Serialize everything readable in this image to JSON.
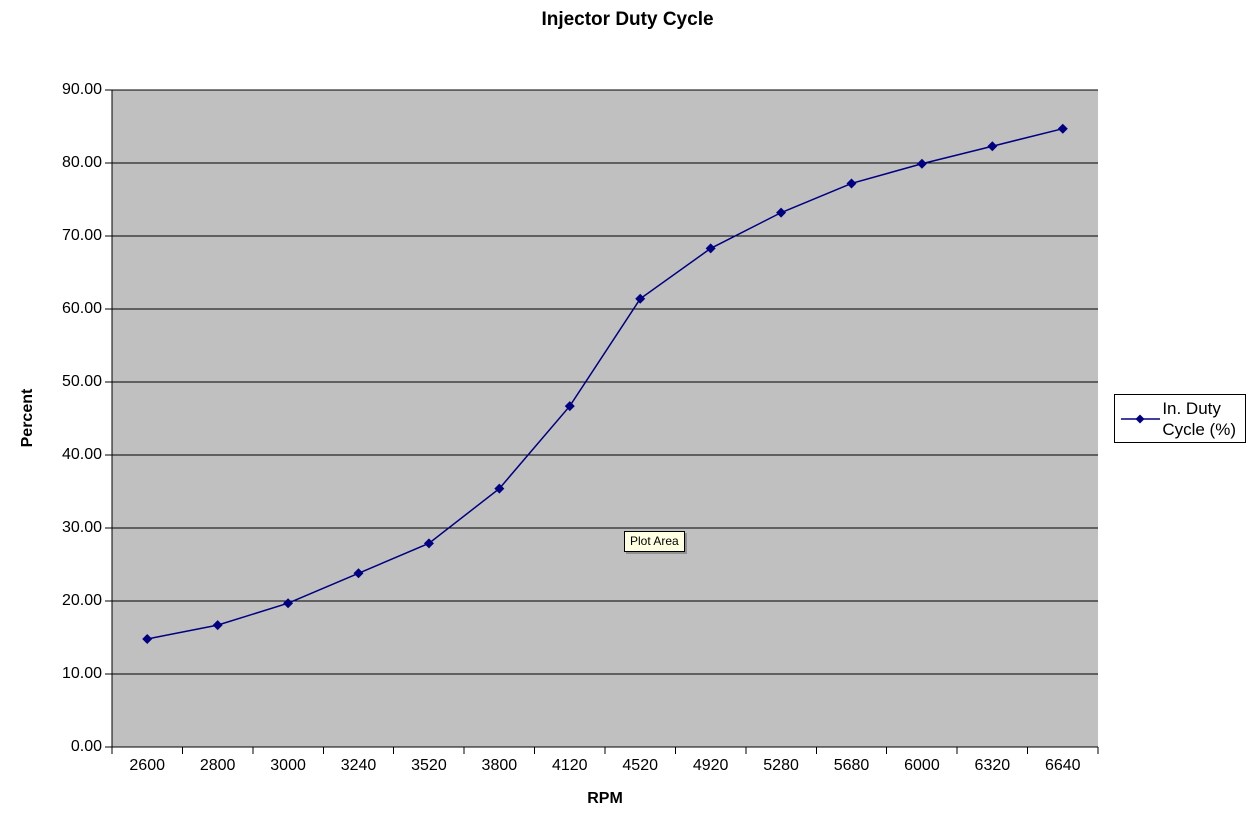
{
  "chart_data": {
    "type": "line",
    "title": "Injector Duty Cycle",
    "xlabel": "RPM",
    "ylabel": "Percent",
    "categories": [
      "2600",
      "2800",
      "3000",
      "3240",
      "3520",
      "3800",
      "4120",
      "4520",
      "4920",
      "5280",
      "5680",
      "6000",
      "6320",
      "6640"
    ],
    "series": [
      {
        "name": "In. Duty Cycle (%)",
        "values": [
          14.8,
          16.7,
          19.7,
          23.8,
          27.9,
          35.4,
          46.7,
          61.4,
          68.3,
          73.2,
          77.2,
          79.9,
          82.3,
          84.7
        ]
      }
    ],
    "ylim": [
      0,
      90
    ],
    "y_tick_step": 10,
    "y_tick_labels": [
      "0.00",
      "10.00",
      "20.00",
      "30.00",
      "40.00",
      "50.00",
      "60.00",
      "70.00",
      "80.00",
      "90.00"
    ],
    "grid": true,
    "legend_position": "right",
    "colors": {
      "line": "#000080",
      "marker": "#000080",
      "plot_background": "#c0c0c0",
      "gridline": "#000000",
      "axis": "#000000",
      "page_background": "#ffffff"
    }
  },
  "legend": {
    "label": "In. Duty Cycle (%)"
  },
  "tooltip": {
    "label": "Plot Area",
    "background": "#ffffe1"
  }
}
